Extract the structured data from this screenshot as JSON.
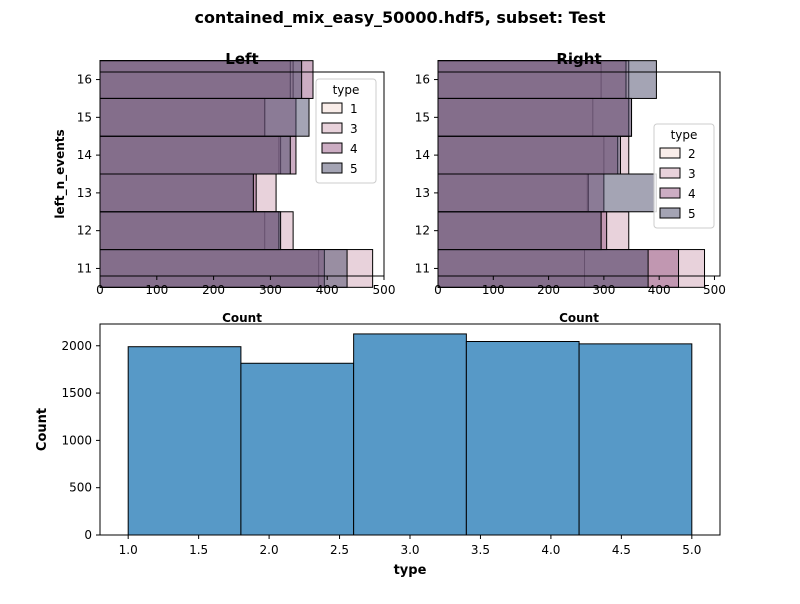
{
  "figure": {
    "suptitle": "contained_mix_easy_50000.hdf5, subset: Test"
  },
  "chart_data": [
    {
      "id": "left",
      "type": "bar",
      "orientation": "horizontal",
      "title": "Left",
      "xlabel": "Count",
      "ylabel": "left_n_events",
      "xlim": [
        0,
        500
      ],
      "ylim": [
        10.8,
        16.2
      ],
      "xticks": [
        0,
        100,
        200,
        300,
        400,
        500
      ],
      "yticks": [
        11,
        12,
        13,
        14,
        15,
        16
      ],
      "categories": [
        "11",
        "12",
        "13",
        "14",
        "15",
        "16"
      ],
      "legend": {
        "title": "type",
        "position": "upper right"
      },
      "series": [
        {
          "name": "1",
          "color": "#f3dcd4",
          "values": [
            385,
            290,
            270,
            315,
            290,
            340
          ]
        },
        {
          "name": "3",
          "color": "#d2a5b8",
          "values": [
            480,
            340,
            310,
            318,
            290,
            335
          ]
        },
        {
          "name": "4",
          "color": "#9a5b88",
          "values": [
            395,
            315,
            275,
            345,
            345,
            375
          ]
        },
        {
          "name": "5",
          "color": "#4a4a6a",
          "values": [
            435,
            318,
            270,
            335,
            368,
            355
          ]
        }
      ]
    },
    {
      "id": "right",
      "type": "bar",
      "orientation": "horizontal",
      "title": "Right",
      "xlabel": "Count",
      "ylabel": "",
      "xlim": [
        0,
        510
      ],
      "ylim": [
        10.8,
        16.2
      ],
      "xticks": [
        0,
        100,
        200,
        300,
        400,
        500
      ],
      "yticks": [
        11,
        12,
        13,
        14,
        15,
        16
      ],
      "categories": [
        "11",
        "12",
        "13",
        "14",
        "15",
        "16"
      ],
      "legend": {
        "title": "type",
        "position": "center right"
      },
      "series": [
        {
          "name": "2",
          "color": "#f3dcd4",
          "values": [
            265,
            295,
            270,
            300,
            280,
            295
          ]
        },
        {
          "name": "3",
          "color": "#d2a5b8",
          "values": [
            482,
            345,
            272,
            345,
            350,
            345
          ]
        },
        {
          "name": "4",
          "color": "#9a5b88",
          "values": [
            435,
            305,
            300,
            325,
            345,
            340
          ]
        },
        {
          "name": "5",
          "color": "#4a4a6a",
          "values": [
            380,
            295,
            395,
            330,
            350,
            395
          ]
        }
      ]
    },
    {
      "id": "bottom",
      "type": "bar",
      "title": "",
      "xlabel": "type",
      "ylabel": "Count",
      "xlim": [
        0.8,
        5.2
      ],
      "ylim": [
        0,
        2230
      ],
      "xticks": [
        "1.0",
        "1.5",
        "2.0",
        "2.5",
        "3.0",
        "3.5",
        "4.0",
        "4.5",
        "5.0"
      ],
      "yticks": [
        0,
        500,
        1000,
        1500,
        2000
      ],
      "bins": [
        {
          "x0": 1.0,
          "x1": 1.8,
          "value": 1990
        },
        {
          "x0": 1.8,
          "x1": 2.6,
          "value": 1815
        },
        {
          "x0": 2.6,
          "x1": 3.4,
          "value": 2125
        },
        {
          "x0": 3.4,
          "x1": 4.2,
          "value": 2045
        },
        {
          "x0": 4.2,
          "x1": 5.0,
          "value": 2020
        }
      ],
      "color": "#5799c7",
      "legend": null,
      "grid": false
    }
  ]
}
